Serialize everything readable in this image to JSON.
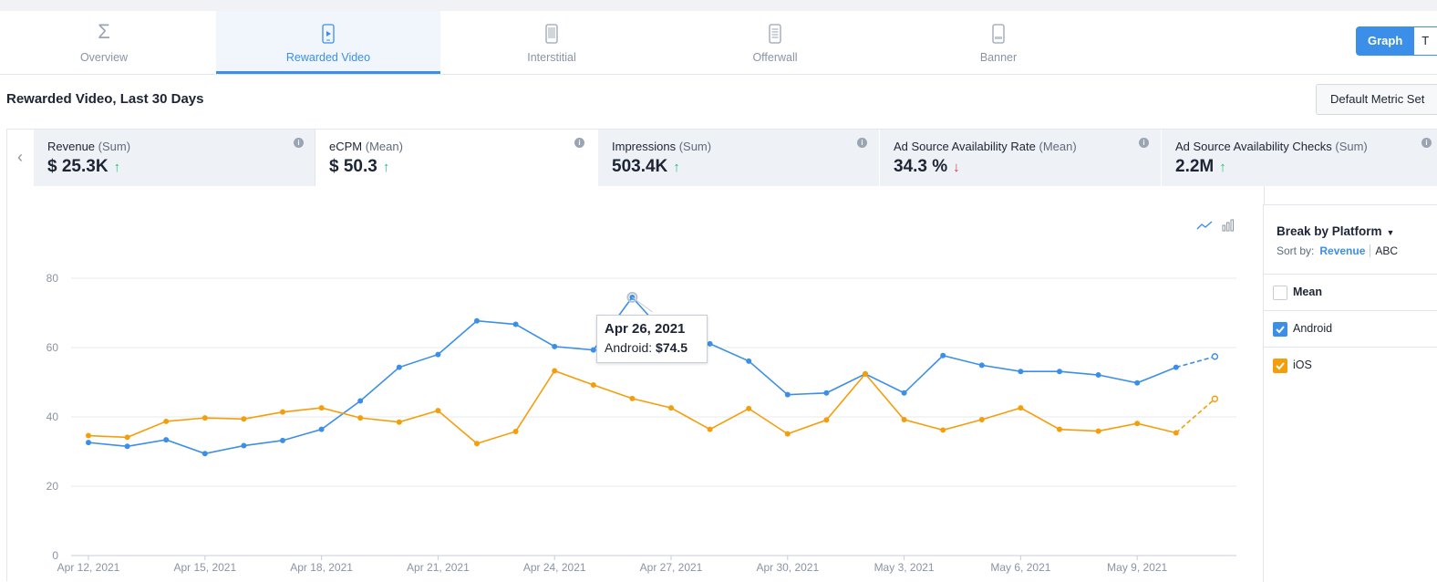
{
  "tabs": [
    {
      "label": "Overview",
      "icon": "sigma-icon"
    },
    {
      "label": "Rewarded Video",
      "icon": "video-phone-icon",
      "active": true
    },
    {
      "label": "Interstitial",
      "icon": "phone-icon"
    },
    {
      "label": "Offerwall",
      "icon": "list-phone-icon"
    },
    {
      "label": "Banner",
      "icon": "banner-phone-icon"
    }
  ],
  "view_toggle": {
    "graph": "Graph",
    "table": "T"
  },
  "page_title": "Rewarded Video, Last 30 Days",
  "metric_set": "Default Metric Set",
  "metrics": [
    {
      "name": "Revenue",
      "agg": "(Sum)",
      "value": "$ 25.3K",
      "trend": "↑"
    },
    {
      "name": "eCPM",
      "agg": "(Mean)",
      "value": "$ 50.3",
      "trend": "↑"
    },
    {
      "name": "Impressions",
      "agg": "(Sum)",
      "value": "503.4K",
      "trend": "↑"
    },
    {
      "name": "Ad Source Availability Rate",
      "agg": "(Mean)",
      "value": "34.3 %",
      "trend": "↓"
    },
    {
      "name": "Ad Source Availability Checks",
      "agg": "(Sum)",
      "value": "2.2M",
      "trend": "↑"
    }
  ],
  "tooltip": {
    "date": "Apr 26, 2021",
    "series": "Android:",
    "value": "$74.5"
  },
  "side_panel": {
    "break_by": "Break by Platform",
    "sort_by": "Sort by:",
    "sort_revenue": "Revenue",
    "sort_abc": "ABC",
    "legend": [
      {
        "label": "Mean",
        "checked": false
      },
      {
        "label": "Android",
        "checked": true
      },
      {
        "label": "iOS",
        "checked": true
      }
    ]
  },
  "colors": {
    "android": "#3b8fe8",
    "ios": "#f59e0b",
    "accent": "#3b8fe8"
  },
  "chart_data": {
    "type": "line",
    "x": [
      "Apr 12, 2021",
      "Apr 13, 2021",
      "Apr 14, 2021",
      "Apr 15, 2021",
      "Apr 16, 2021",
      "Apr 17, 2021",
      "Apr 18, 2021",
      "Apr 19, 2021",
      "Apr 20, 2021",
      "Apr 21, 2021",
      "Apr 22, 2021",
      "Apr 23, 2021",
      "Apr 24, 2021",
      "Apr 25, 2021",
      "Apr 26, 2021",
      "Apr 27, 2021",
      "Apr 28, 2021",
      "Apr 29, 2021",
      "Apr 30, 2021",
      "May 1, 2021",
      "May 2, 2021",
      "May 3, 2021",
      "May 4, 2021",
      "May 5, 2021",
      "May 6, 2021",
      "May 7, 2021",
      "May 8, 2021",
      "May 9, 2021",
      "May 10, 2021",
      "May 11, 2021"
    ],
    "x_tick_labels": [
      "Apr 12, 2021",
      "Apr 15, 2021",
      "Apr 18, 2021",
      "Apr 21, 2021",
      "Apr 24, 2021",
      "Apr 27, 2021",
      "Apr 30, 2021",
      "May 3, 2021",
      "May 6, 2021",
      "May 9, 2021"
    ],
    "ylim": [
      0,
      80
    ],
    "y_ticks": [
      0,
      20,
      40,
      60,
      80
    ],
    "grid": true,
    "series": [
      {
        "name": "Android",
        "color": "#3b8fe8",
        "values": [
          32.6,
          31.5,
          33.4,
          29.4,
          31.7,
          33.2,
          36.4,
          44.6,
          54.3,
          58,
          67.7,
          66.7,
          60.3,
          59.3,
          74.5,
          62,
          61.1,
          56.1,
          46.4,
          46.9,
          52.4,
          46.9,
          57.7,
          54.9,
          53.1,
          53.1,
          52.1,
          49.8,
          54.3,
          57.4
        ],
        "dashed_last_segment": true
      },
      {
        "name": "iOS",
        "color": "#f59e0b",
        "values": [
          34.6,
          34.1,
          38.7,
          39.7,
          39.4,
          41.4,
          42.6,
          39.7,
          38.5,
          41.8,
          32.3,
          35.8,
          53.3,
          49.2,
          45.3,
          42.6,
          36.4,
          42.4,
          35.1,
          39.1,
          52.4,
          39.2,
          36.2,
          39.2,
          42.6,
          36.4,
          35.9,
          38.1,
          35.4,
          45.2
        ],
        "dashed_last_segment": true
      }
    ]
  }
}
